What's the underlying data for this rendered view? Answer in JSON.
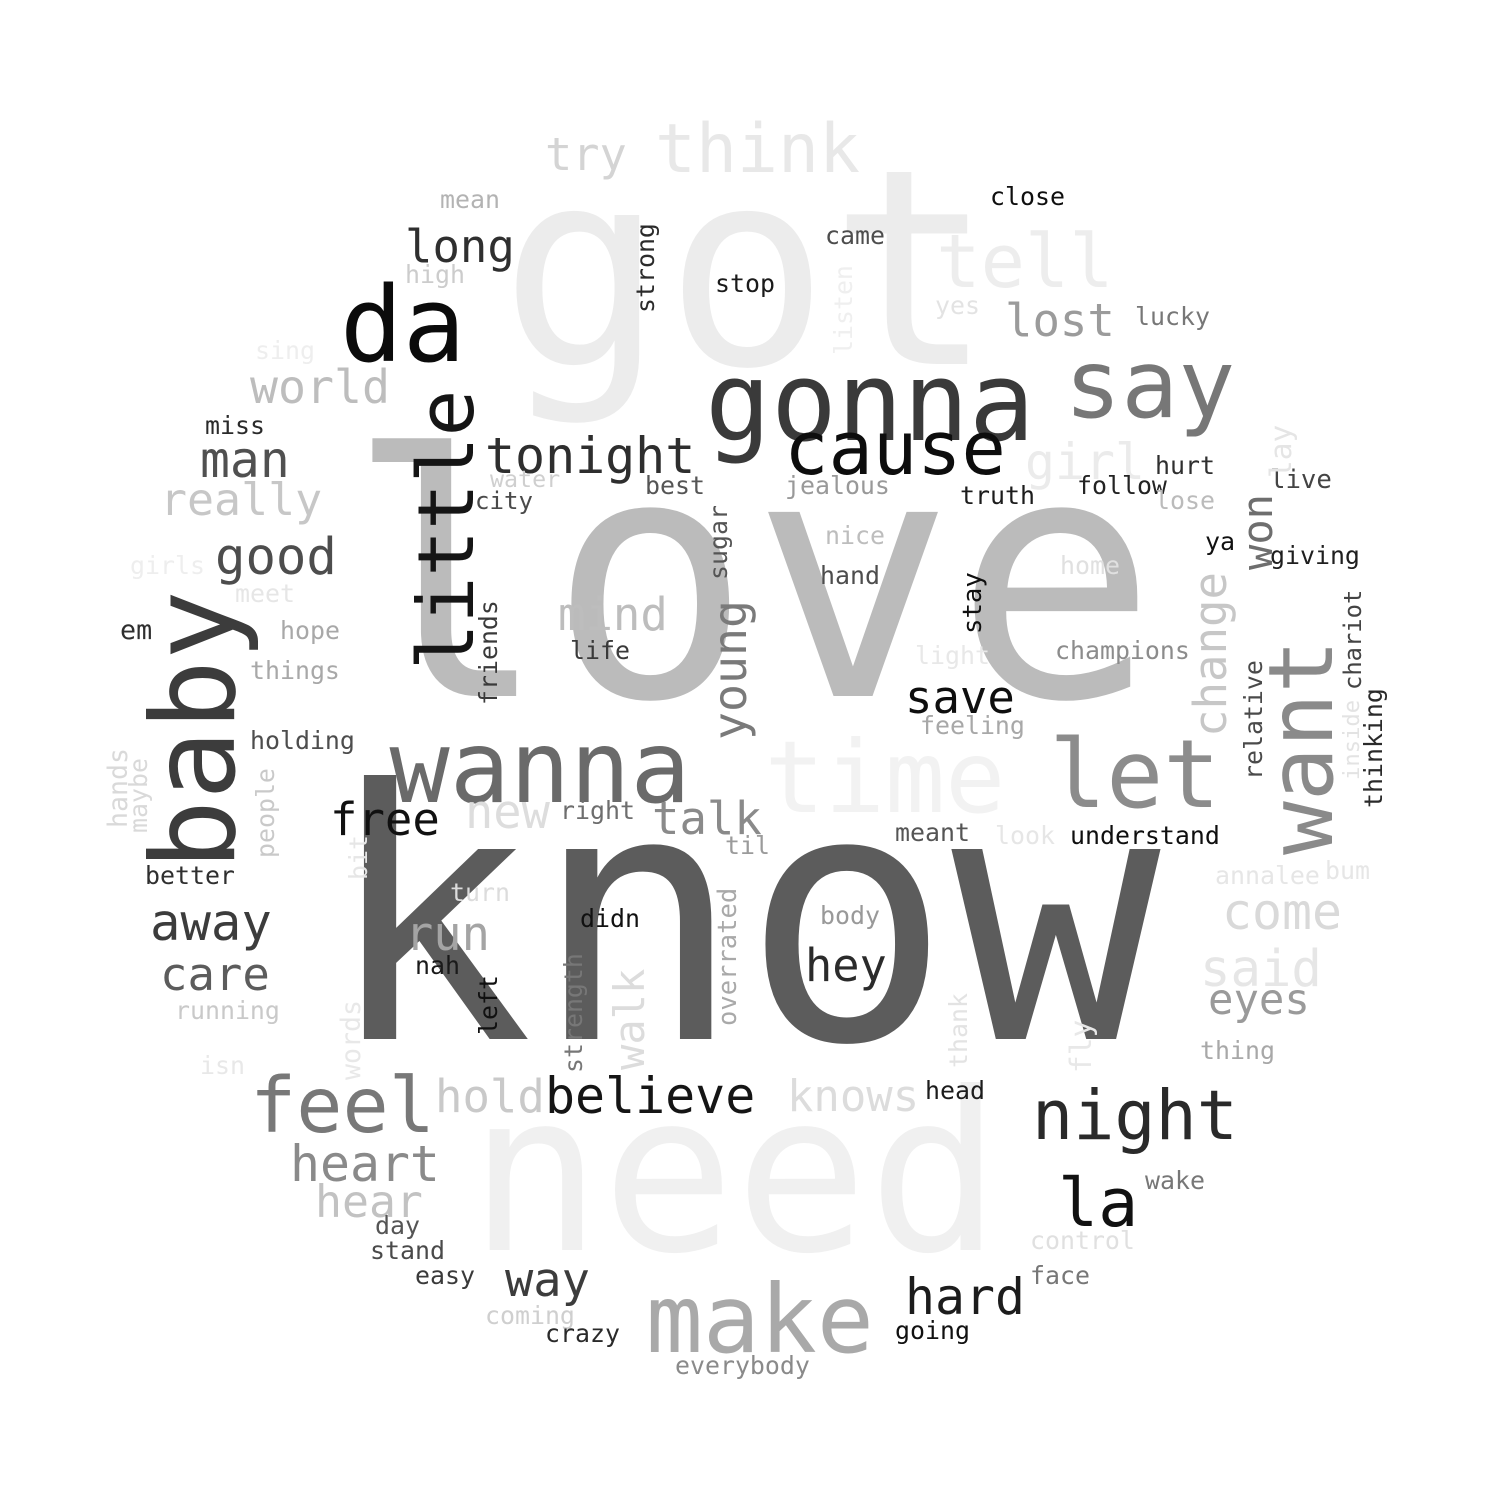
{
  "words": [
    {
      "text": "love",
      "color": "#bbbbbb"
    },
    {
      "text": "know",
      "color": "#5c5c5c"
    },
    {
      "text": "got",
      "color": "#ececec"
    },
    {
      "text": "need",
      "color": "#f0f0f0"
    },
    {
      "text": "gonna",
      "color": "#3a3a3a"
    },
    {
      "text": "say",
      "color": "#777777"
    },
    {
      "text": "cause",
      "color": "#0d0d0d"
    },
    {
      "text": "da",
      "color": "#0b0b0b"
    },
    {
      "text": "baby",
      "color": "#3c3c3c"
    },
    {
      "text": "want",
      "color": "#8a8a8a"
    },
    {
      "text": "wanna",
      "color": "#6a6a6a"
    },
    {
      "text": "time",
      "color": "#f2f2f2"
    },
    {
      "text": "let",
      "color": "#8c8c8c"
    },
    {
      "text": "make",
      "color": "#a9a9a9"
    },
    {
      "text": "little",
      "color": "#151515"
    },
    {
      "text": "think",
      "color": "#e8e8e8"
    },
    {
      "text": "tell",
      "color": "#ededed"
    },
    {
      "text": "night",
      "color": "#2a2a2a"
    },
    {
      "text": "feel",
      "color": "#787878"
    },
    {
      "text": "la",
      "color": "#111111"
    },
    {
      "text": "tonight",
      "color": "#2e2e2e"
    },
    {
      "text": "believe",
      "color": "#151515"
    },
    {
      "text": "hard",
      "color": "#1c1c1c"
    },
    {
      "text": "heart",
      "color": "#8a8a8a"
    },
    {
      "text": "long",
      "color": "#2f2f2f"
    },
    {
      "text": "man",
      "color": "#505050"
    },
    {
      "text": "good",
      "color": "#4d4d4d"
    },
    {
      "text": "lost",
      "color": "#9b9b9b"
    },
    {
      "text": "girl",
      "color": "#ebebeb"
    },
    {
      "text": "world",
      "color": "#bdbdbd"
    },
    {
      "text": "really",
      "color": "#c7c7c7"
    },
    {
      "text": "mind",
      "color": "#bdbdbd"
    },
    {
      "text": "young",
      "color": "#7a7a7a"
    },
    {
      "text": "change",
      "color": "#c7c7c7"
    },
    {
      "text": "won",
      "color": "#6e6e6e"
    },
    {
      "text": "save",
      "color": "#0e0e0e"
    },
    {
      "text": "free",
      "color": "#111111"
    },
    {
      "text": "talk",
      "color": "#8a8a8a"
    },
    {
      "text": "new",
      "color": "#dddddd"
    },
    {
      "text": "away",
      "color": "#3c3c3c"
    },
    {
      "text": "care",
      "color": "#5c5c5c"
    },
    {
      "text": "run",
      "color": "#a4a4a4"
    },
    {
      "text": "hey",
      "color": "#2b2b2b"
    },
    {
      "text": "come",
      "color": "#d9d9d9"
    },
    {
      "text": "said",
      "color": "#e6e6e6"
    },
    {
      "text": "eyes",
      "color": "#9a9a9a"
    },
    {
      "text": "walk",
      "color": "#dcdcdc"
    },
    {
      "text": "hold",
      "color": "#c9c9c9"
    },
    {
      "text": "knows",
      "color": "#dcdcdc"
    },
    {
      "text": "hear",
      "color": "#c2c2c2"
    },
    {
      "text": "way",
      "color": "#3c3c3c"
    },
    {
      "text": "try",
      "color": "#d4d4d4"
    },
    {
      "text": "close",
      "color": "#0f0f0f"
    },
    {
      "text": "came",
      "color": "#4d4d4d"
    },
    {
      "text": "stop",
      "color": "#1a1a1a"
    },
    {
      "text": "strong",
      "color": "#2b2b2b"
    },
    {
      "text": "listen",
      "color": "#efefef"
    },
    {
      "text": "yes",
      "color": "#e3e3e3"
    },
    {
      "text": "lucky",
      "color": "#777777"
    },
    {
      "text": "mean",
      "color": "#b3b3b3"
    },
    {
      "text": "high",
      "color": "#cccccc"
    },
    {
      "text": "sing",
      "color": "#eeeeee"
    },
    {
      "text": "miss",
      "color": "#2a2a2a"
    },
    {
      "text": "water",
      "color": "#cfcfcf"
    },
    {
      "text": "city",
      "color": "#4a4a4a"
    },
    {
      "text": "best",
      "color": "#555555"
    },
    {
      "text": "jealous",
      "color": "#999999"
    },
    {
      "text": "truth",
      "color": "#1c1c1c"
    },
    {
      "text": "follow",
      "color": "#232323"
    },
    {
      "text": "hurt",
      "color": "#2f2f2f"
    },
    {
      "text": "lose",
      "color": "#bbbbbb"
    },
    {
      "text": "live",
      "color": "#444444"
    },
    {
      "text": "lay",
      "color": "#e5e5e5"
    },
    {
      "text": "ya",
      "color": "#111111"
    },
    {
      "text": "giving",
      "color": "#1f1f1f"
    },
    {
      "text": "sugar",
      "color": "#555555"
    },
    {
      "text": "nice",
      "color": "#bdbdbd"
    },
    {
      "text": "hand",
      "color": "#4d4d4d"
    },
    {
      "text": "home",
      "color": "#e0e0e0"
    },
    {
      "text": "girls",
      "color": "#eeeeee"
    },
    {
      "text": "meet",
      "color": "#e6e6e6"
    },
    {
      "text": "hope",
      "color": "#a8a8a8"
    },
    {
      "text": "things",
      "color": "#a8a8a8"
    },
    {
      "text": "em",
      "color": "#2f2f2f"
    },
    {
      "text": "friends",
      "color": "#3a3a3a"
    },
    {
      "text": "life",
      "color": "#3a3a3a"
    },
    {
      "text": "light",
      "color": "#e8e8e8"
    },
    {
      "text": "champions",
      "color": "#8c8c8c"
    },
    {
      "text": "stay",
      "color": "#0f0f0f"
    },
    {
      "text": "chariot",
      "color": "#444444"
    },
    {
      "text": "relative",
      "color": "#4a4a4a"
    },
    {
      "text": "inside",
      "color": "#e3e3e3"
    },
    {
      "text": "thinking",
      "color": "#2a2a2a"
    },
    {
      "text": "feeling",
      "color": "#a8a8a8"
    },
    {
      "text": "holding",
      "color": "#4d4d4d"
    },
    {
      "text": "hands",
      "color": "#d9d9d9"
    },
    {
      "text": "maybe",
      "color": "#d9d9d9"
    },
    {
      "text": "people",
      "color": "#c9c9c9"
    },
    {
      "text": "bit",
      "color": "#e6e6e6"
    },
    {
      "text": "better",
      "color": "#2f2f2f"
    },
    {
      "text": "right",
      "color": "#6e6e6e"
    },
    {
      "text": "til",
      "color": "#9b9b9b"
    },
    {
      "text": "meant",
      "color": "#555555"
    },
    {
      "text": "look",
      "color": "#e6e6e6"
    },
    {
      "text": "understand",
      "color": "#0f0f0f"
    },
    {
      "text": "annalee",
      "color": "#e6e6e6"
    },
    {
      "text": "bum",
      "color": "#e6e6e6"
    },
    {
      "text": "turn",
      "color": "#dcdcdc"
    },
    {
      "text": "didn",
      "color": "#111111"
    },
    {
      "text": "overrated",
      "color": "#a9a9a9"
    },
    {
      "text": "body",
      "color": "#999999"
    },
    {
      "text": "nah",
      "color": "#1a1a1a"
    },
    {
      "text": "running",
      "color": "#c9c9c9"
    },
    {
      "text": "left",
      "color": "#111111"
    },
    {
      "text": "strength",
      "color": "#777777"
    },
    {
      "text": "words",
      "color": "#e8e8e8"
    },
    {
      "text": "isn",
      "color": "#e8e8e8"
    },
    {
      "text": "thank",
      "color": "#e3e3e3"
    },
    {
      "text": "fly",
      "color": "#e8e8e8"
    },
    {
      "text": "thing",
      "color": "#a8a8a8"
    },
    {
      "text": "head",
      "color": "#1c1c1c"
    },
    {
      "text": "wake",
      "color": "#777777"
    },
    {
      "text": "day",
      "color": "#555555"
    },
    {
      "text": "stand",
      "color": "#4a4a4a"
    },
    {
      "text": "easy",
      "color": "#3a3a3a"
    },
    {
      "text": "control",
      "color": "#e0e0e0"
    },
    {
      "text": "face",
      "color": "#777777"
    },
    {
      "text": "coming",
      "color": "#cfcfcf"
    },
    {
      "text": "crazy",
      "color": "#2a2a2a"
    },
    {
      "text": "going",
      "color": "#111111"
    },
    {
      "text": "everybody",
      "color": "#8a8a8a"
    }
  ]
}
